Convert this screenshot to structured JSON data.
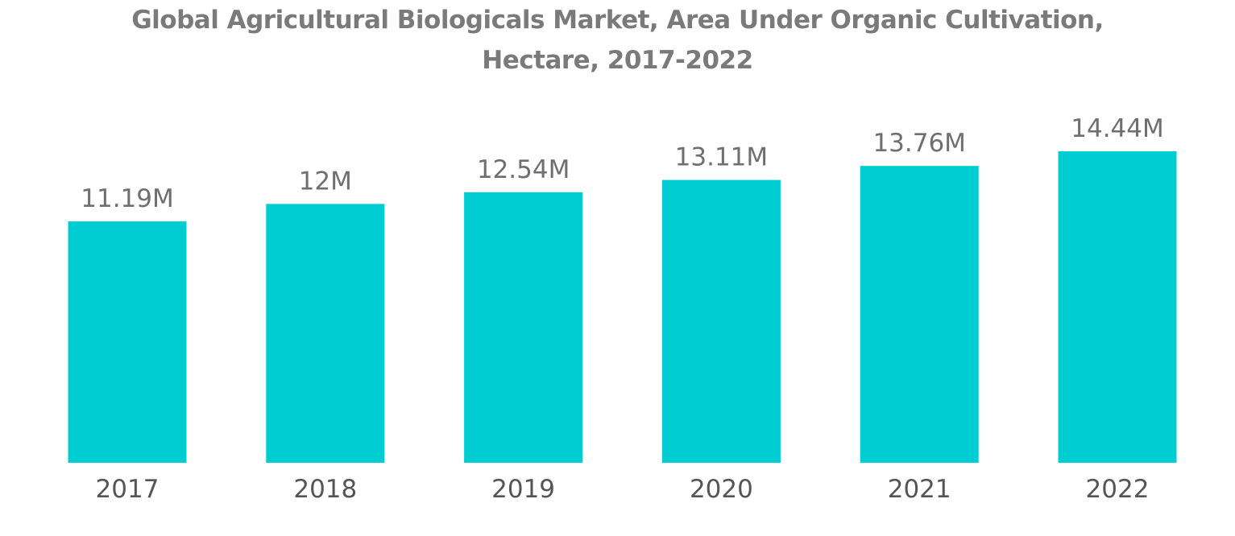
{
  "chart_data": {
    "type": "bar",
    "title_lines": [
      "Global Agricultural Biologicals Market, Area Under Organic Cultivation,",
      "Hectare, 2017-2022"
    ],
    "categories": [
      "2017",
      "2018",
      "2019",
      "2020",
      "2021",
      "2022"
    ],
    "values": [
      11.19,
      12.0,
      12.54,
      13.11,
      13.76,
      14.44
    ],
    "value_labels": [
      "11.19M",
      "12M",
      "12.54M",
      "13.11M",
      "13.76M",
      "14.44M"
    ],
    "unit": "M",
    "xlabel": "",
    "ylabel": "",
    "ylim": [
      0,
      14.44
    ],
    "grid": false,
    "bar_color": "#00cdd1"
  }
}
